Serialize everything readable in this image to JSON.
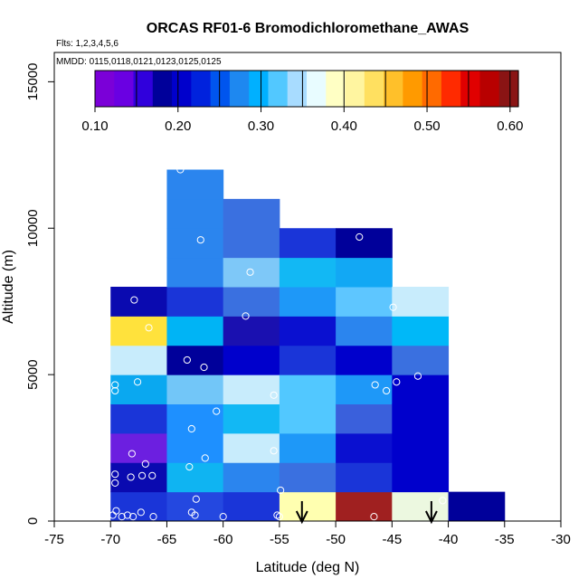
{
  "chart_data": {
    "type": "heatmap",
    "title": "ORCAS RF01-6 Bromodichloromethane_AWAS",
    "flights_note": "Flts: 1,2,3,4,5,6",
    "dates_note": "MMDD: 0115,0118,0121,0123,0125,0125",
    "xlabel": "Latitude (deg N)",
    "ylabel": "Altitude (m)",
    "xlim": [
      -75,
      -30
    ],
    "ylim": [
      0,
      16000
    ],
    "x_ticks": [
      "-75",
      "-70",
      "-65",
      "-60",
      "-55",
      "-50",
      "-45",
      "-40",
      "-35",
      "-30"
    ],
    "y_ticks": [
      "0",
      "5000",
      "10000",
      "15000"
    ],
    "colorbar": {
      "min": 0.1,
      "max": 0.61,
      "ticks": [
        "0.10",
        "0.20",
        "0.30",
        "0.40",
        "0.50",
        "0.60"
      ],
      "colors": [
        "#7b00d8",
        "#6a00e2",
        "#3000dc",
        "#00009a",
        "#0000cc",
        "#0022dd",
        "#0055ee",
        "#1e88f0",
        "#00b0ff",
        "#52c8ff",
        "#a8dcff",
        "#e8fcff",
        "#ffffc4",
        "#fff5a0",
        "#ffe060",
        "#ffc02a",
        "#ff9a00",
        "#ff6a00",
        "#ff2a00",
        "#e00000",
        "#b80000",
        "#8a1414"
      ]
    },
    "bin_width_deg": 5,
    "bin_height_m": 1000,
    "cells": [
      {
        "lat": -70,
        "alt": 0,
        "color": "#1a35d8"
      },
      {
        "lat": -70,
        "alt": 1000,
        "color": "#0a0ab0"
      },
      {
        "lat": -70,
        "alt": 2000,
        "color": "#6c1fe0"
      },
      {
        "lat": -70,
        "alt": 3000,
        "color": "#1a35d8"
      },
      {
        "lat": -70,
        "alt": 4000,
        "color": "#0aa8f0"
      },
      {
        "lat": -70,
        "alt": 5000,
        "color": "#c8ecfc"
      },
      {
        "lat": -70,
        "alt": 6000,
        "color": "#ffe23c"
      },
      {
        "lat": -70,
        "alt": 7000,
        "color": "#0a0ab0"
      },
      {
        "lat": -65,
        "alt": 0,
        "color": "#2448e0"
      },
      {
        "lat": -65,
        "alt": 1000,
        "color": "#0fb4f2"
      },
      {
        "lat": -65,
        "alt": 2000,
        "color": "#1e90ff"
      },
      {
        "lat": -65,
        "alt": 3000,
        "color": "#1e90ff"
      },
      {
        "lat": -65,
        "alt": 4000,
        "color": "#72c6f8"
      },
      {
        "lat": -65,
        "alt": 5000,
        "color": "#00009a"
      },
      {
        "lat": -65,
        "alt": 6000,
        "color": "#00b4f5"
      },
      {
        "lat": -65,
        "alt": 7000,
        "color": "#1a35d8"
      },
      {
        "lat": -65,
        "alt": 8000,
        "color": "#2b85ee"
      },
      {
        "lat": -65,
        "alt": 9000,
        "color": "#2b85ee"
      },
      {
        "lat": -65,
        "alt": 10000,
        "color": "#2b85ee"
      },
      {
        "lat": -65,
        "alt": 11000,
        "color": "#2b85ee"
      },
      {
        "lat": -60,
        "alt": 0,
        "color": "#1a35d8"
      },
      {
        "lat": -60,
        "alt": 1000,
        "color": "#2b85ee"
      },
      {
        "lat": -60,
        "alt": 2000,
        "color": "#c8ecfc"
      },
      {
        "lat": -60,
        "alt": 3000,
        "color": "#12b8f4"
      },
      {
        "lat": -60,
        "alt": 4000,
        "color": "#c8ecfc"
      },
      {
        "lat": -60,
        "alt": 5000,
        "color": "#0000cc"
      },
      {
        "lat": -60,
        "alt": 6000,
        "color": "#1a10b0"
      },
      {
        "lat": -60,
        "alt": 7000,
        "color": "#3a70e0"
      },
      {
        "lat": -60,
        "alt": 8000,
        "color": "#7ec8f8"
      },
      {
        "lat": -60,
        "alt": 9000,
        "color": "#3a70e0"
      },
      {
        "lat": -60,
        "alt": 10000,
        "color": "#3a70e0"
      },
      {
        "lat": -55,
        "alt": 0,
        "color": "#ffffb0"
      },
      {
        "lat": -55,
        "alt": 1000,
        "color": "#3a70e0"
      },
      {
        "lat": -55,
        "alt": 2000,
        "color": "#1e98f8"
      },
      {
        "lat": -55,
        "alt": 3000,
        "color": "#52c8ff"
      },
      {
        "lat": -55,
        "alt": 4000,
        "color": "#52c8ff"
      },
      {
        "lat": -55,
        "alt": 5000,
        "color": "#1a35d8"
      },
      {
        "lat": -55,
        "alt": 6000,
        "color": "#0a10d0"
      },
      {
        "lat": -55,
        "alt": 7000,
        "color": "#1e98f8"
      },
      {
        "lat": -55,
        "alt": 8000,
        "color": "#12b8f4"
      },
      {
        "lat": -55,
        "alt": 9000,
        "color": "#1a35d8"
      },
      {
        "lat": -50,
        "alt": 0,
        "color": "#a02020"
      },
      {
        "lat": -50,
        "alt": 1000,
        "color": "#1a35d8"
      },
      {
        "lat": -50,
        "alt": 2000,
        "color": "#0a10d0"
      },
      {
        "lat": -50,
        "alt": 3000,
        "color": "#3a60dc"
      },
      {
        "lat": -50,
        "alt": 4000,
        "color": "#1e98f8"
      },
      {
        "lat": -50,
        "alt": 5000,
        "color": "#0000cc"
      },
      {
        "lat": -50,
        "alt": 6000,
        "color": "#2b85ee"
      },
      {
        "lat": -50,
        "alt": 7000,
        "color": "#5ec6ff"
      },
      {
        "lat": -50,
        "alt": 8000,
        "color": "#12a8f4"
      },
      {
        "lat": -50,
        "alt": 9000,
        "color": "#00009a"
      },
      {
        "lat": -45,
        "alt": 0,
        "color": "#ecf8e0"
      },
      {
        "lat": -45,
        "alt": 1000,
        "color": "#0000cc"
      },
      {
        "lat": -45,
        "alt": 2000,
        "color": "#0000cc"
      },
      {
        "lat": -45,
        "alt": 3000,
        "color": "#0000cc"
      },
      {
        "lat": -45,
        "alt": 4000,
        "color": "#0000cc"
      },
      {
        "lat": -45,
        "alt": 5000,
        "color": "#3a70e0"
      },
      {
        "lat": -45,
        "alt": 6000,
        "color": "#00b8f8"
      },
      {
        "lat": -45,
        "alt": 7000,
        "color": "#c8ecfc"
      },
      {
        "lat": -40,
        "alt": 0,
        "color": "#00009a"
      }
    ],
    "points": [
      {
        "lat": -69.8,
        "alt": 200
      },
      {
        "lat": -69.5,
        "alt": 350
      },
      {
        "lat": -69.0,
        "alt": 150
      },
      {
        "lat": -68.5,
        "alt": 200
      },
      {
        "lat": -68.0,
        "alt": 150
      },
      {
        "lat": -67.3,
        "alt": 300
      },
      {
        "lat": -66.2,
        "alt": 150
      },
      {
        "lat": -69.6,
        "alt": 1300
      },
      {
        "lat": -69.6,
        "alt": 1600
      },
      {
        "lat": -68.2,
        "alt": 1500
      },
      {
        "lat": -67.2,
        "alt": 1550
      },
      {
        "lat": -66.3,
        "alt": 1550
      },
      {
        "lat": -66.9,
        "alt": 1950
      },
      {
        "lat": -68.1,
        "alt": 2300
      },
      {
        "lat": -69.6,
        "alt": 4450
      },
      {
        "lat": -69.6,
        "alt": 4650
      },
      {
        "lat": -67.6,
        "alt": 4750
      },
      {
        "lat": -66.6,
        "alt": 6600
      },
      {
        "lat": -67.9,
        "alt": 7550
      },
      {
        "lat": -63.8,
        "alt": 12000
      },
      {
        "lat": -62.0,
        "alt": 9600
      },
      {
        "lat": -63.2,
        "alt": 5500
      },
      {
        "lat": -61.7,
        "alt": 5250
      },
      {
        "lat": -60.6,
        "alt": 3750
      },
      {
        "lat": -62.8,
        "alt": 3150
      },
      {
        "lat": -61.6,
        "alt": 2150
      },
      {
        "lat": -63.0,
        "alt": 1850
      },
      {
        "lat": -62.4,
        "alt": 750
      },
      {
        "lat": -62.8,
        "alt": 300
      },
      {
        "lat": -62.5,
        "alt": 200
      },
      {
        "lat": -60.0,
        "alt": 150
      },
      {
        "lat": -57.6,
        "alt": 8500
      },
      {
        "lat": -58.0,
        "alt": 7000
      },
      {
        "lat": -55.5,
        "alt": 4300
      },
      {
        "lat": -55.5,
        "alt": 2400
      },
      {
        "lat": -54.9,
        "alt": 1050
      },
      {
        "lat": -55.2,
        "alt": 200
      },
      {
        "lat": -55.0,
        "alt": 150
      },
      {
        "lat": -47.9,
        "alt": 9700
      },
      {
        "lat": -46.5,
        "alt": 4650
      },
      {
        "lat": -45.5,
        "alt": 4450
      },
      {
        "lat": -44.9,
        "alt": 7300
      },
      {
        "lat": -44.6,
        "alt": 4750
      },
      {
        "lat": -42.7,
        "alt": 4950
      },
      {
        "lat": -46.6,
        "alt": 150
      },
      {
        "lat": -40.5,
        "alt": 700
      }
    ],
    "arrows": [
      {
        "lat": -53
      },
      {
        "lat": -41.5
      }
    ]
  }
}
